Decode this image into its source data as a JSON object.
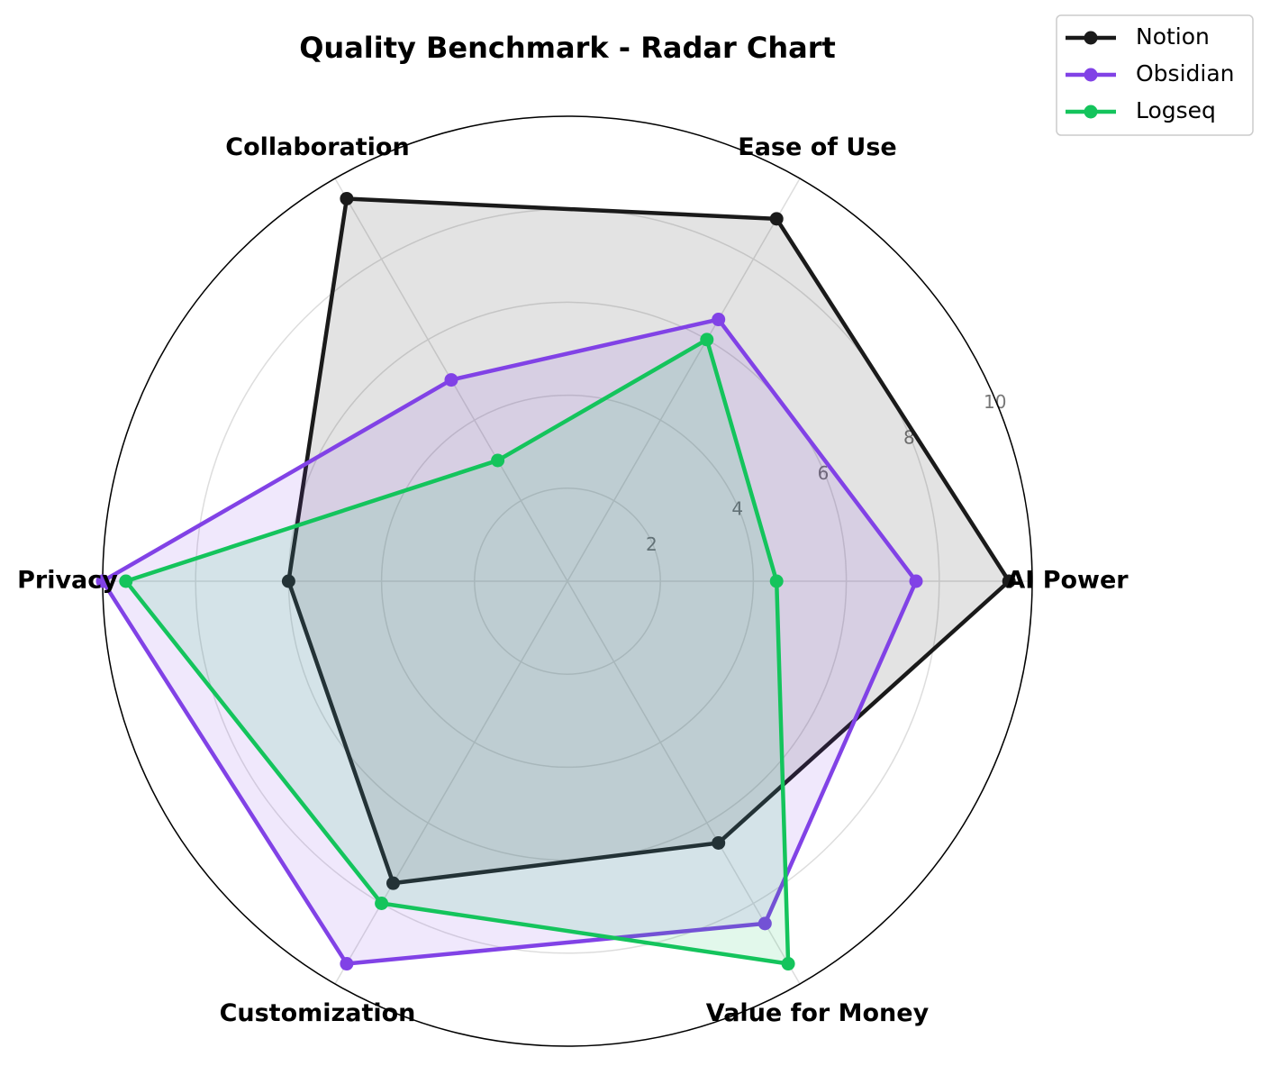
{
  "chart_data": {
    "type": "radar",
    "title": "Quality Benchmark - Radar Chart",
    "categories": [
      "AI Power",
      "Ease of Use",
      "Collaboration",
      "Privacy",
      "Customization",
      "Value for Money"
    ],
    "series": [
      {
        "name": "Notion",
        "color": "#1a1a1a",
        "values": [
          9.5,
          9.0,
          9.5,
          6.0,
          7.5,
          6.5
        ]
      },
      {
        "name": "Obsidian",
        "color": "#8142e6",
        "values": [
          7.5,
          6.5,
          5.0,
          10.0,
          9.5,
          8.5
        ]
      },
      {
        "name": "Logseq",
        "color": "#14c45c",
        "values": [
          4.5,
          6.0,
          3.0,
          9.5,
          8.0,
          9.5
        ]
      }
    ],
    "ylim": [
      0,
      10
    ],
    "yticks": [
      2,
      4,
      6,
      8,
      10
    ],
    "grid": true,
    "legend": "upper right"
  }
}
